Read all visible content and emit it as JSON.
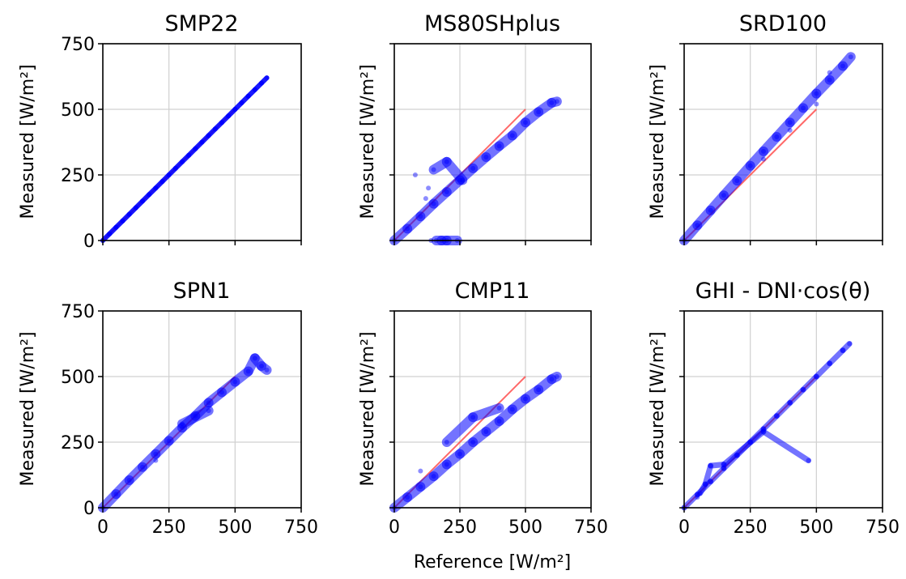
{
  "figure": {
    "shared_xlabel": "Reference [W/m²]",
    "ylabel": "Measured [W/m²]"
  },
  "colors": {
    "points": "#0000ff",
    "reference_line": "#ff4d4d",
    "grid": "#d0d0d0"
  },
  "chart_data": [
    {
      "type": "scatter",
      "title": "SMP22",
      "xlim": [
        0,
        750
      ],
      "ylim": [
        0,
        750
      ],
      "xticks": [
        0,
        250,
        500,
        750
      ],
      "yticks": [
        0,
        250,
        500,
        750
      ],
      "grid": true,
      "reference_line": {
        "x": [
          0,
          500
        ],
        "y": [
          0,
          500
        ]
      },
      "points": [
        [
          0,
          0
        ],
        [
          25,
          25
        ],
        [
          50,
          50
        ],
        [
          75,
          75
        ],
        [
          100,
          100
        ],
        [
          125,
          125
        ],
        [
          150,
          150
        ],
        [
          175,
          175
        ],
        [
          200,
          200
        ],
        [
          225,
          225
        ],
        [
          250,
          250
        ],
        [
          275,
          275
        ],
        [
          300,
          300
        ],
        [
          325,
          325
        ],
        [
          350,
          350
        ],
        [
          375,
          375
        ],
        [
          400,
          400
        ],
        [
          425,
          425
        ],
        [
          450,
          450
        ],
        [
          475,
          475
        ],
        [
          500,
          500
        ],
        [
          525,
          525
        ],
        [
          550,
          550
        ],
        [
          575,
          575
        ],
        [
          600,
          600
        ],
        [
          620,
          620
        ]
      ]
    },
    {
      "type": "scatter",
      "title": "MS80SHplus",
      "xlim": [
        0,
        750
      ],
      "ylim": [
        0,
        750
      ],
      "xticks": [
        0,
        250,
        500,
        750
      ],
      "yticks": [
        0,
        250,
        500,
        750
      ],
      "grid": true,
      "reference_line": {
        "x": [
          0,
          500
        ],
        "y": [
          0,
          500
        ]
      },
      "points": [
        [
          0,
          0
        ],
        [
          50,
          45
        ],
        [
          100,
          92
        ],
        [
          150,
          140
        ],
        [
          200,
          185
        ],
        [
          250,
          230
        ],
        [
          300,
          275
        ],
        [
          350,
          318
        ],
        [
          400,
          360
        ],
        [
          450,
          400
        ],
        [
          500,
          450
        ],
        [
          550,
          490
        ],
        [
          600,
          525
        ],
        [
          620,
          530
        ],
        [
          80,
          250
        ],
        [
          150,
          270
        ],
        [
          120,
          160
        ],
        [
          200,
          300
        ],
        [
          130,
          200
        ],
        [
          260,
          230
        ],
        [
          140,
          0
        ],
        [
          160,
          0
        ],
        [
          180,
          0
        ],
        [
          200,
          0
        ],
        [
          240,
          0
        ]
      ]
    },
    {
      "type": "scatter",
      "title": "SRD100",
      "xlim": [
        0,
        750
      ],
      "ylim": [
        0,
        750
      ],
      "xticks": [
        0,
        250,
        500,
        750
      ],
      "yticks": [
        0,
        250,
        500,
        750
      ],
      "grid": true,
      "reference_line": {
        "x": [
          0,
          500
        ],
        "y": [
          0,
          500
        ]
      },
      "points": [
        [
          0,
          0
        ],
        [
          50,
          58
        ],
        [
          100,
          115
        ],
        [
          150,
          172
        ],
        [
          200,
          228
        ],
        [
          250,
          285
        ],
        [
          300,
          340
        ],
        [
          350,
          395
        ],
        [
          400,
          450
        ],
        [
          450,
          505
        ],
        [
          500,
          560
        ],
        [
          550,
          612
        ],
        [
          600,
          665
        ],
        [
          630,
          700
        ],
        [
          550,
          640
        ],
        [
          500,
          520
        ],
        [
          400,
          420
        ],
        [
          300,
          310
        ]
      ]
    },
    {
      "type": "scatter",
      "title": "SPN1",
      "xlim": [
        0,
        750
      ],
      "ylim": [
        0,
        750
      ],
      "xticks": [
        0,
        250,
        500,
        750
      ],
      "yticks": [
        0,
        250,
        500,
        750
      ],
      "grid": true,
      "reference_line": {
        "x": [
          0,
          500
        ],
        "y": [
          0,
          500
        ]
      },
      "points": [
        [
          0,
          0
        ],
        [
          50,
          52
        ],
        [
          100,
          105
        ],
        [
          150,
          155
        ],
        [
          200,
          205
        ],
        [
          250,
          255
        ],
        [
          300,
          305
        ],
        [
          350,
          350
        ],
        [
          400,
          400
        ],
        [
          450,
          440
        ],
        [
          500,
          480
        ],
        [
          550,
          520
        ],
        [
          575,
          570
        ],
        [
          600,
          540
        ],
        [
          620,
          525
        ],
        [
          200,
          180
        ],
        [
          300,
          320
        ],
        [
          400,
          370
        ]
      ]
    },
    {
      "type": "scatter",
      "title": "CMP11",
      "xlim": [
        0,
        750
      ],
      "ylim": [
        0,
        750
      ],
      "xticks": [
        0,
        250,
        500,
        750
      ],
      "yticks": [
        0,
        250,
        500,
        750
      ],
      "grid": true,
      "reference_line": {
        "x": [
          0,
          500
        ],
        "y": [
          0,
          500
        ]
      },
      "points": [
        [
          0,
          0
        ],
        [
          50,
          40
        ],
        [
          100,
          80
        ],
        [
          150,
          120
        ],
        [
          200,
          165
        ],
        [
          250,
          205
        ],
        [
          300,
          250
        ],
        [
          350,
          290
        ],
        [
          400,
          330
        ],
        [
          450,
          375
        ],
        [
          500,
          415
        ],
        [
          550,
          450
        ],
        [
          600,
          490
        ],
        [
          620,
          500
        ],
        [
          100,
          140
        ],
        [
          200,
          250
        ],
        [
          300,
          345
        ],
        [
          400,
          380
        ]
      ]
    },
    {
      "type": "scatter",
      "title": "GHI - DNI·cos(θ)",
      "xlim": [
        0,
        750
      ],
      "ylim": [
        0,
        750
      ],
      "xticks": [
        0,
        250,
        500,
        750
      ],
      "yticks": [
        0,
        250,
        500,
        750
      ],
      "grid": true,
      "reference_line": {
        "x": [
          0,
          500
        ],
        "y": [
          0,
          500
        ]
      },
      "points": [
        [
          0,
          0
        ],
        [
          50,
          50
        ],
        [
          100,
          100
        ],
        [
          150,
          150
        ],
        [
          200,
          200
        ],
        [
          250,
          250
        ],
        [
          300,
          300
        ],
        [
          350,
          350
        ],
        [
          400,
          400
        ],
        [
          450,
          450
        ],
        [
          500,
          500
        ],
        [
          550,
          550
        ],
        [
          600,
          600
        ],
        [
          625,
          625
        ],
        [
          50,
          40
        ],
        [
          60,
          55
        ],
        [
          80,
          90
        ],
        [
          100,
          160
        ],
        [
          150,
          165
        ],
        [
          300,
          290
        ],
        [
          470,
          180
        ]
      ]
    }
  ]
}
